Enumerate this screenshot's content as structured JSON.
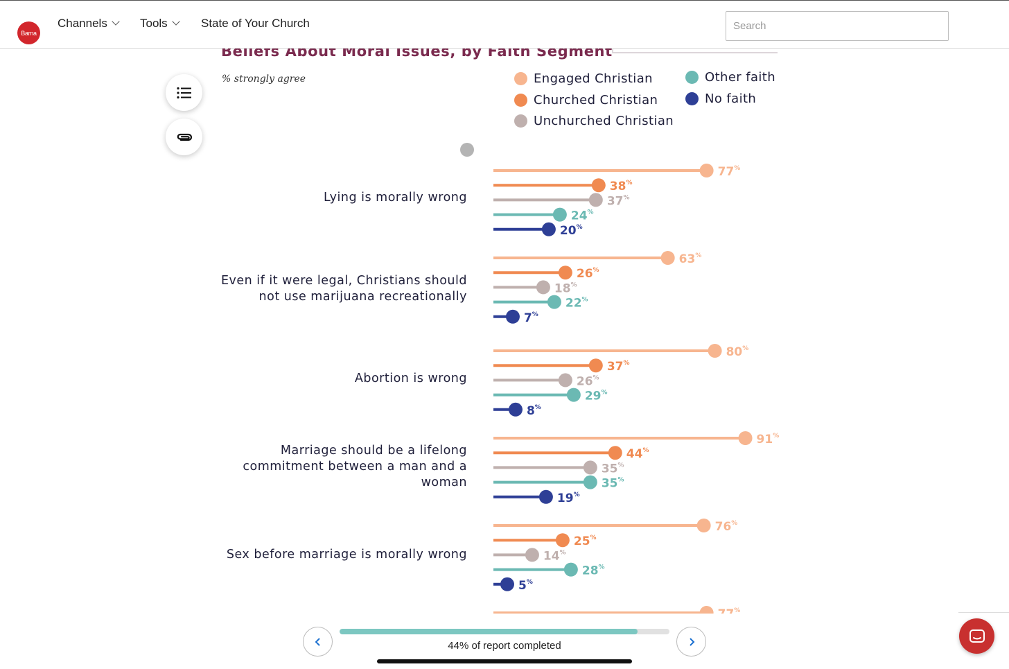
{
  "header": {
    "logo_text": "Barna",
    "nav": [
      {
        "label": "Channels",
        "has_dropdown": true
      },
      {
        "label": "Tools",
        "has_dropdown": true
      },
      {
        "label": "State of Your Church",
        "has_dropdown": false
      }
    ],
    "search_placeholder": "Search"
  },
  "side_buttons": [
    {
      "icon": "list-icon"
    },
    {
      "icon": "paperclip-icon"
    }
  ],
  "chart_data": {
    "type": "bar",
    "orientation": "horizontal",
    "title": "Beliefs About Moral Issues, by Faith Segment",
    "subtitle": "% strongly agree",
    "value_suffix": "%",
    "xlim": [
      0,
      100
    ],
    "legend": [
      {
        "name": "Engaged Christian",
        "color": "#f7b58f"
      },
      {
        "name": "Churched Christian",
        "color": "#f08a51"
      },
      {
        "name": "Unchurched Christian",
        "color": "#bfb0ae"
      },
      {
        "name": "Other faith",
        "color": "#6bb9b3"
      },
      {
        "name": "No faith",
        "color": "#2e3f96"
      }
    ],
    "categories": [
      [
        "Lying is morally wrong"
      ],
      [
        "Even if it were legal, Christians should",
        "not use marijuana recreationally"
      ],
      [
        "Abortion is wrong"
      ],
      [
        "Marriage should be a lifelong",
        "commitment between a man and a",
        "woman"
      ],
      [
        "Sex before marriage is morally wrong"
      ]
    ],
    "series": [
      {
        "name": "Engaged Christian",
        "values": [
          77,
          63,
          80,
          91,
          76
        ]
      },
      {
        "name": "Churched Christian",
        "values": [
          38,
          26,
          37,
          44,
          25
        ]
      },
      {
        "name": "Unchurched Christian",
        "values": [
          37,
          18,
          26,
          35,
          14
        ]
      },
      {
        "name": "Other faith",
        "values": [
          24,
          22,
          29,
          35,
          28
        ]
      },
      {
        "name": "No faith",
        "values": [
          20,
          7,
          8,
          19,
          5
        ]
      }
    ],
    "partial_next_value": 77
  },
  "progress": {
    "percent": 44,
    "label": "44% of report completed"
  },
  "colors": {
    "brand": "#d2262c",
    "title": "#7a2a4e",
    "progress": "#7cc7c1",
    "nav_arrow": "#1a6fd0"
  }
}
